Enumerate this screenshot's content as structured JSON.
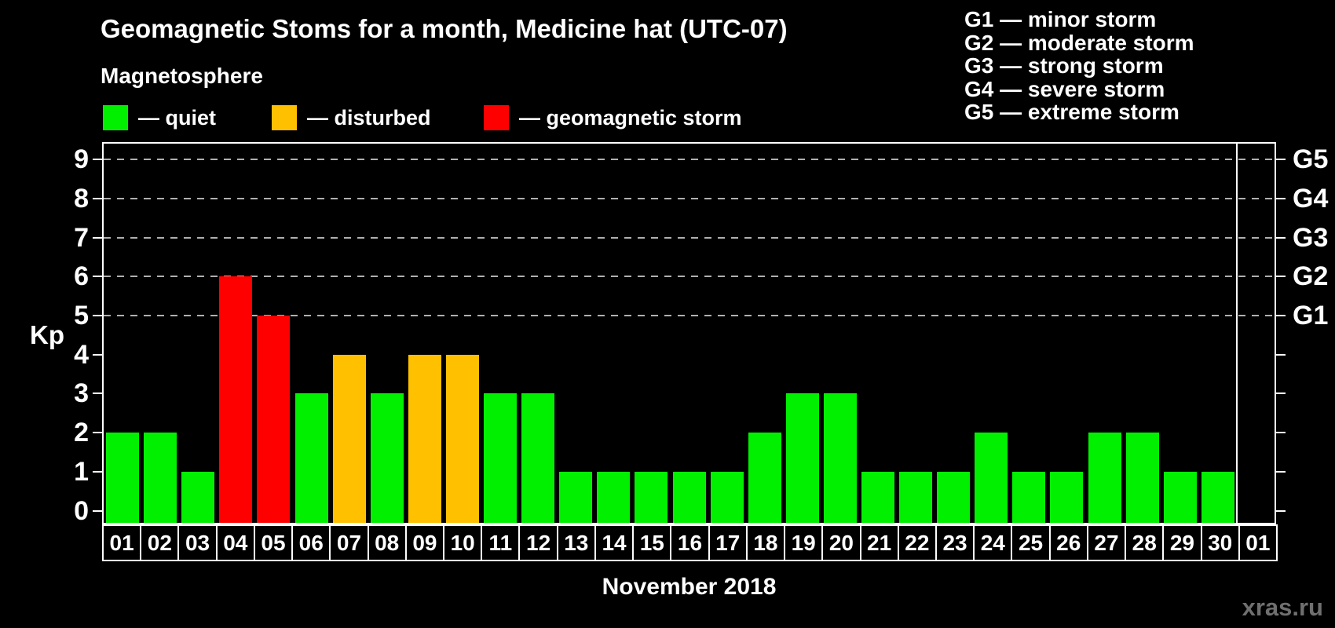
{
  "title": "Geomagnetic Stoms for a month, Medicine hat (UTC-07)",
  "subtitle": "Magnetosphere",
  "legend": {
    "items": [
      {
        "name": "quiet",
        "label": "— quiet",
        "color": "#00f000"
      },
      {
        "name": "disturbed",
        "label": "— disturbed",
        "color": "#ffc000"
      },
      {
        "name": "storm",
        "label": "— geomagnetic storm",
        "color": "#ff0000"
      }
    ]
  },
  "g_scale_legend": [
    "G1 — minor storm",
    "G2 — moderate storm",
    "G3 — strong storm",
    "G4 — severe storm",
    "G5 — extreme storm"
  ],
  "watermark": "xras.ru",
  "watermark_color": "#6f6f6f",
  "chart_data": {
    "type": "bar",
    "title": "Geomagnetic Stoms for a month, Medicine hat (UTC-07)",
    "xlabel": "November 2018",
    "ylabel": "Kp",
    "ylim": [
      0,
      9
    ],
    "yticks": [
      0,
      1,
      2,
      3,
      4,
      5,
      6,
      7,
      8,
      9
    ],
    "categories": [
      "01",
      "02",
      "03",
      "04",
      "05",
      "06",
      "07",
      "08",
      "09",
      "10",
      "11",
      "12",
      "13",
      "14",
      "15",
      "16",
      "17",
      "18",
      "19",
      "20",
      "21",
      "22",
      "23",
      "24",
      "25",
      "26",
      "27",
      "28",
      "29",
      "30",
      "01"
    ],
    "values": [
      2,
      2,
      1,
      6,
      5,
      3,
      4,
      3,
      4,
      4,
      3,
      3,
      1,
      1,
      1,
      1,
      1,
      2,
      3,
      3,
      1,
      1,
      1,
      2,
      1,
      1,
      2,
      2,
      1,
      1,
      null
    ],
    "statuses": [
      "quiet",
      "quiet",
      "quiet",
      "storm",
      "storm",
      "quiet",
      "disturbed",
      "quiet",
      "disturbed",
      "disturbed",
      "quiet",
      "quiet",
      "quiet",
      "quiet",
      "quiet",
      "quiet",
      "quiet",
      "quiet",
      "quiet",
      "quiet",
      "quiet",
      "quiet",
      "quiet",
      "quiet",
      "quiet",
      "quiet",
      "quiet",
      "quiet",
      "quiet",
      "quiet",
      null
    ],
    "status_colors": {
      "quiet": "#00f000",
      "disturbed": "#ffc000",
      "storm": "#ff0000"
    },
    "gridlines_kp": [
      5,
      6,
      7,
      8,
      9
    ],
    "grid_color": "#b0b0b0",
    "right_axis": [
      {
        "kp": 5,
        "label": "G1"
      },
      {
        "kp": 6,
        "label": "G2"
      },
      {
        "kp": 7,
        "label": "G3"
      },
      {
        "kp": 8,
        "label": "G4"
      },
      {
        "kp": 9,
        "label": "G5"
      }
    ],
    "legend_position": "top-left",
    "grid": true
  }
}
